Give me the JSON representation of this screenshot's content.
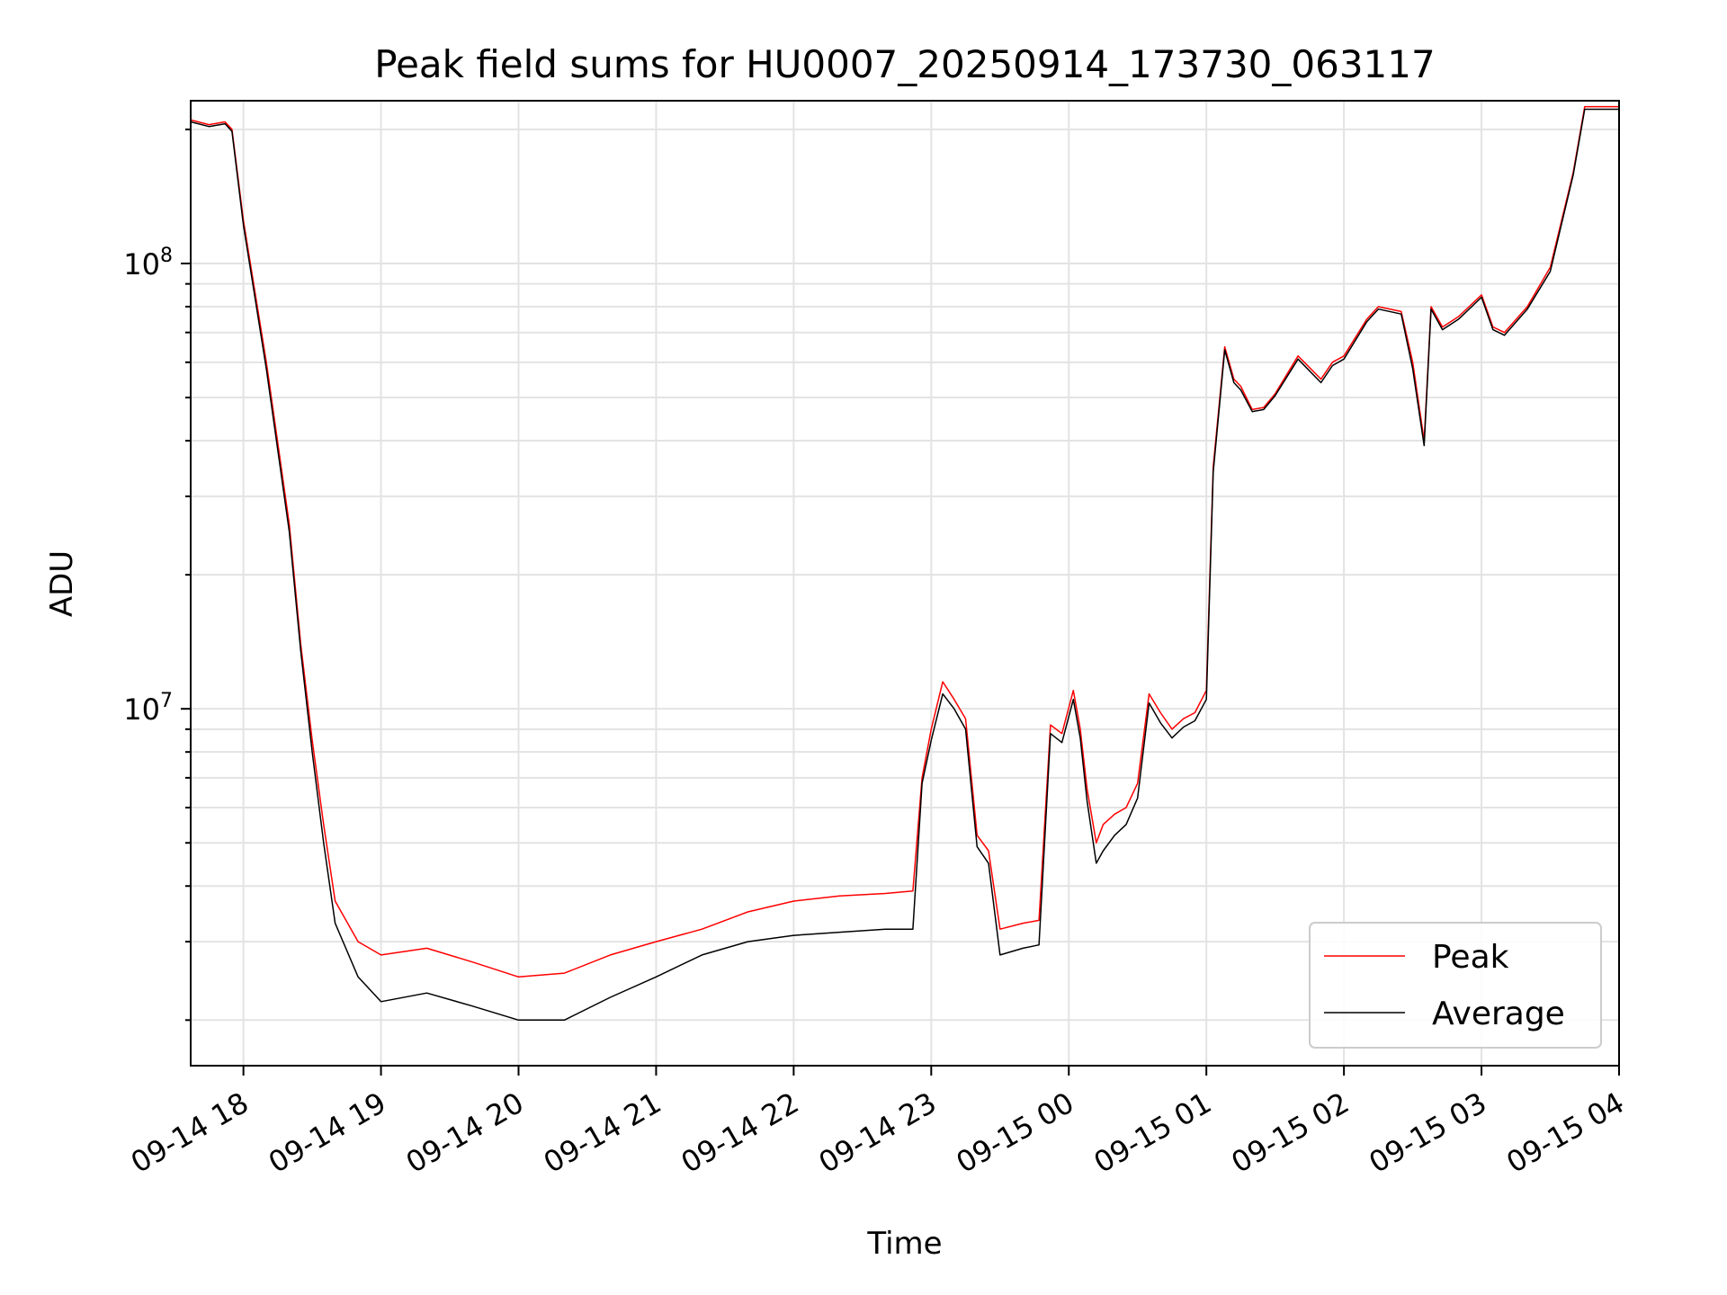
{
  "chart_data": {
    "type": "line",
    "title": "Peak field sums for HU0007_20250914_173730_063117",
    "xlabel": "Time",
    "ylabel": "ADU",
    "yscale": "log",
    "ylim": [
      1580000,
      232000000
    ],
    "xlim": [
      "2025-09-14 17:37",
      "2025-09-15 04:00"
    ],
    "grid": true,
    "legend_position": "lower-right",
    "x_tick_labels": [
      "09-14 18",
      "09-14 19",
      "09-14 20",
      "09-14 21",
      "09-14 22",
      "09-14 23",
      "09-15 00",
      "09-15 01",
      "09-15 02",
      "09-15 03",
      "09-15 04"
    ],
    "y_tick_labels": [
      {
        "base": "10",
        "exp": "7",
        "value": 10000000
      },
      {
        "base": "10",
        "exp": "8",
        "value": 100000000
      }
    ],
    "series": [
      {
        "name": "Peak",
        "color": "#ff0000",
        "x": [
          "2025-09-14 17:37",
          "2025-09-14 17:45",
          "2025-09-14 17:52",
          "2025-09-14 17:55",
          "2025-09-14 18:00",
          "2025-09-14 18:10",
          "2025-09-14 18:20",
          "2025-09-14 18:25",
          "2025-09-14 18:30",
          "2025-09-14 18:35",
          "2025-09-14 18:40",
          "2025-09-14 18:50",
          "2025-09-14 19:00",
          "2025-09-14 19:20",
          "2025-09-14 19:40",
          "2025-09-14 20:00",
          "2025-09-14 20:20",
          "2025-09-14 20:40",
          "2025-09-14 21:00",
          "2025-09-14 21:20",
          "2025-09-14 21:40",
          "2025-09-14 22:00",
          "2025-09-14 22:20",
          "2025-09-14 22:40",
          "2025-09-14 22:52",
          "2025-09-14 22:56",
          "2025-09-14 23:00",
          "2025-09-14 23:05",
          "2025-09-14 23:10",
          "2025-09-14 23:15",
          "2025-09-14 23:20",
          "2025-09-14 23:25",
          "2025-09-14 23:30",
          "2025-09-14 23:40",
          "2025-09-14 23:47",
          "2025-09-14 23:52",
          "2025-09-14 23:57",
          "2025-09-15 00:02",
          "2025-09-15 00:05",
          "2025-09-15 00:08",
          "2025-09-15 00:12",
          "2025-09-15 00:15",
          "2025-09-15 00:20",
          "2025-09-15 00:25",
          "2025-09-15 00:30",
          "2025-09-15 00:35",
          "2025-09-15 00:40",
          "2025-09-15 00:45",
          "2025-09-15 00:50",
          "2025-09-15 00:55",
          "2025-09-15 01:00",
          "2025-09-15 01:03",
          "2025-09-15 01:08",
          "2025-09-15 01:12",
          "2025-09-15 01:15",
          "2025-09-15 01:20",
          "2025-09-15 01:25",
          "2025-09-15 01:30",
          "2025-09-15 01:40",
          "2025-09-15 01:50",
          "2025-09-15 01:55",
          "2025-09-15 02:00",
          "2025-09-15 02:10",
          "2025-09-15 02:15",
          "2025-09-15 02:25",
          "2025-09-15 02:30",
          "2025-09-15 02:35",
          "2025-09-15 02:38",
          "2025-09-15 02:43",
          "2025-09-15 02:50",
          "2025-09-15 03:00",
          "2025-09-15 03:05",
          "2025-09-15 03:10",
          "2025-09-15 03:20",
          "2025-09-15 03:30",
          "2025-09-15 03:40",
          "2025-09-15 03:45",
          "2025-09-15 04:00"
        ],
        "y": [
          210000000,
          205000000,
          208000000,
          200000000,
          125000000,
          60000000,
          26000000,
          14000000,
          8500000,
          5500000,
          3700000,
          3000000,
          2800000,
          2900000,
          2700000,
          2500000,
          2550000,
          2800000,
          3000000,
          3200000,
          3500000,
          3700000,
          3800000,
          3850000,
          3900000,
          7000000,
          9000000,
          11500000,
          10500000,
          9500000,
          5200000,
          4800000,
          3200000,
          3300000,
          3350000,
          9200000,
          8800000,
          11000000,
          9000000,
          6600000,
          5000000,
          5500000,
          5800000,
          6000000,
          6800000,
          10800000,
          9800000,
          9000000,
          9500000,
          9800000,
          11000000,
          35000000,
          65000000,
          55000000,
          53000000,
          47000000,
          47500000,
          51000000,
          62000000,
          55000000,
          60000000,
          62000000,
          75000000,
          80000000,
          78000000,
          60000000,
          40000000,
          80000000,
          72000000,
          76000000,
          85000000,
          72000000,
          70000000,
          80000000,
          98000000,
          160000000,
          225000000,
          225000000
        ]
      },
      {
        "name": "Average",
        "color": "#000000",
        "x": [
          "2025-09-14 17:37",
          "2025-09-14 17:45",
          "2025-09-14 17:52",
          "2025-09-14 17:55",
          "2025-09-14 18:00",
          "2025-09-14 18:10",
          "2025-09-14 18:20",
          "2025-09-14 18:25",
          "2025-09-14 18:30",
          "2025-09-14 18:35",
          "2025-09-14 18:40",
          "2025-09-14 18:50",
          "2025-09-14 19:00",
          "2025-09-14 19:20",
          "2025-09-14 19:40",
          "2025-09-14 20:00",
          "2025-09-14 20:20",
          "2025-09-14 20:40",
          "2025-09-14 21:00",
          "2025-09-14 21:20",
          "2025-09-14 21:40",
          "2025-09-14 22:00",
          "2025-09-14 22:20",
          "2025-09-14 22:40",
          "2025-09-14 22:52",
          "2025-09-14 22:56",
          "2025-09-14 23:00",
          "2025-09-14 23:05",
          "2025-09-14 23:10",
          "2025-09-14 23:15",
          "2025-09-14 23:20",
          "2025-09-14 23:25",
          "2025-09-14 23:30",
          "2025-09-14 23:40",
          "2025-09-14 23:47",
          "2025-09-14 23:52",
          "2025-09-14 23:57",
          "2025-09-15 00:02",
          "2025-09-15 00:05",
          "2025-09-15 00:08",
          "2025-09-15 00:12",
          "2025-09-15 00:15",
          "2025-09-15 00:20",
          "2025-09-15 00:25",
          "2025-09-15 00:30",
          "2025-09-15 00:35",
          "2025-09-15 00:40",
          "2025-09-15 00:45",
          "2025-09-15 00:50",
          "2025-09-15 00:55",
          "2025-09-15 01:00",
          "2025-09-15 01:03",
          "2025-09-15 01:08",
          "2025-09-15 01:12",
          "2025-09-15 01:15",
          "2025-09-15 01:20",
          "2025-09-15 01:25",
          "2025-09-15 01:30",
          "2025-09-15 01:40",
          "2025-09-15 01:50",
          "2025-09-15 01:55",
          "2025-09-15 02:00",
          "2025-09-15 02:10",
          "2025-09-15 02:15",
          "2025-09-15 02:25",
          "2025-09-15 02:30",
          "2025-09-15 02:35",
          "2025-09-15 02:38",
          "2025-09-15 02:43",
          "2025-09-15 02:50",
          "2025-09-15 03:00",
          "2025-09-15 03:05",
          "2025-09-15 03:10",
          "2025-09-15 03:20",
          "2025-09-15 03:30",
          "2025-09-15 03:40",
          "2025-09-15 03:45",
          "2025-09-15 04:00"
        ],
        "y": [
          208000000,
          203000000,
          206000000,
          198000000,
          122000000,
          58000000,
          25000000,
          13500000,
          8000000,
          5000000,
          3300000,
          2500000,
          2200000,
          2300000,
          2150000,
          2000000,
          2000000,
          2250000,
          2500000,
          2800000,
          3000000,
          3100000,
          3150000,
          3200000,
          3200000,
          6800000,
          8500000,
          10800000,
          10000000,
          9000000,
          4900000,
          4500000,
          2800000,
          2900000,
          2950000,
          8800000,
          8400000,
          10500000,
          8600000,
          6200000,
          4500000,
          4800000,
          5200000,
          5500000,
          6300000,
          10300000,
          9300000,
          8600000,
          9100000,
          9400000,
          10500000,
          34000000,
          64000000,
          54000000,
          52000000,
          46500000,
          47000000,
          50500000,
          61000000,
          54000000,
          59000000,
          61000000,
          74000000,
          79000000,
          77000000,
          58000000,
          39000000,
          79000000,
          71000000,
          75000000,
          84000000,
          71000000,
          69000000,
          79000000,
          96000000,
          158000000,
          222000000,
          222000000
        ]
      }
    ]
  }
}
